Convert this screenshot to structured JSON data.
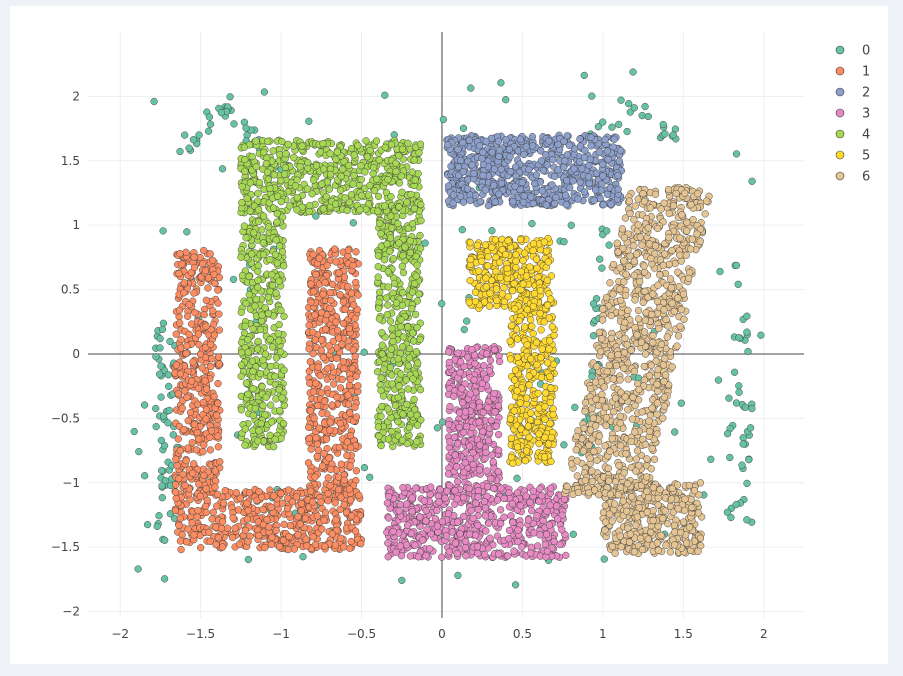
{
  "chart_data": {
    "type": "scatter",
    "title": "",
    "xlabel": "",
    "ylabel": "",
    "xlim": [
      -2.2,
      2.25
    ],
    "ylim": [
      -2.05,
      2.5
    ],
    "x_ticks": [
      -2,
      -1.5,
      -1,
      -0.5,
      0,
      0.5,
      1,
      1.5,
      2
    ],
    "x_tick_labels": [
      "−2",
      "−1.5",
      "−1",
      "−0.5",
      "0",
      "0.5",
      "1",
      "1.5",
      "2"
    ],
    "y_ticks": [
      -2,
      -1.5,
      -1,
      -0.5,
      0,
      0.5,
      1,
      1.5,
      2
    ],
    "y_tick_labels": [
      "−2",
      "−1.5",
      "−1",
      "−0.5",
      "0",
      "0.5",
      "1",
      "1.5",
      "2"
    ],
    "grid": true,
    "zero_lines": true,
    "legend_position": "top-right",
    "series": [
      {
        "name": "0",
        "color": "#66c2a5",
        "region": "background noise and thin bands",
        "approx_count": 300
      },
      {
        "name": "1",
        "color": "#fc8d62",
        "region": "U-shaped cluster x −1.65..−0.5, y −1.5..0.85",
        "approx_count": 1300
      },
      {
        "name": "2",
        "color": "#8da0cb",
        "region": "rectangle x 0.05..1.1, y 1.15..1.7",
        "approx_count": 700
      },
      {
        "name": "3",
        "color": "#e78ac3",
        "region": "L-shaped cluster x −0.35..0.75, y −1.55..0.05",
        "approx_count": 900
      },
      {
        "name": "4",
        "color": "#a6d854",
        "region": "inverted-U cluster x −1.25..−0.15, y −0.7..1.65",
        "approx_count": 1300
      },
      {
        "name": "5",
        "color": "#ffd92f",
        "region": "T-shaped cluster x 0.15..0.7, y −0.85..0.9",
        "approx_count": 700
      },
      {
        "name": "6",
        "color": "#e5c494",
        "region": "band x 1.0..1.75, y −1.55..1.3",
        "approx_count": 1300
      }
    ]
  }
}
